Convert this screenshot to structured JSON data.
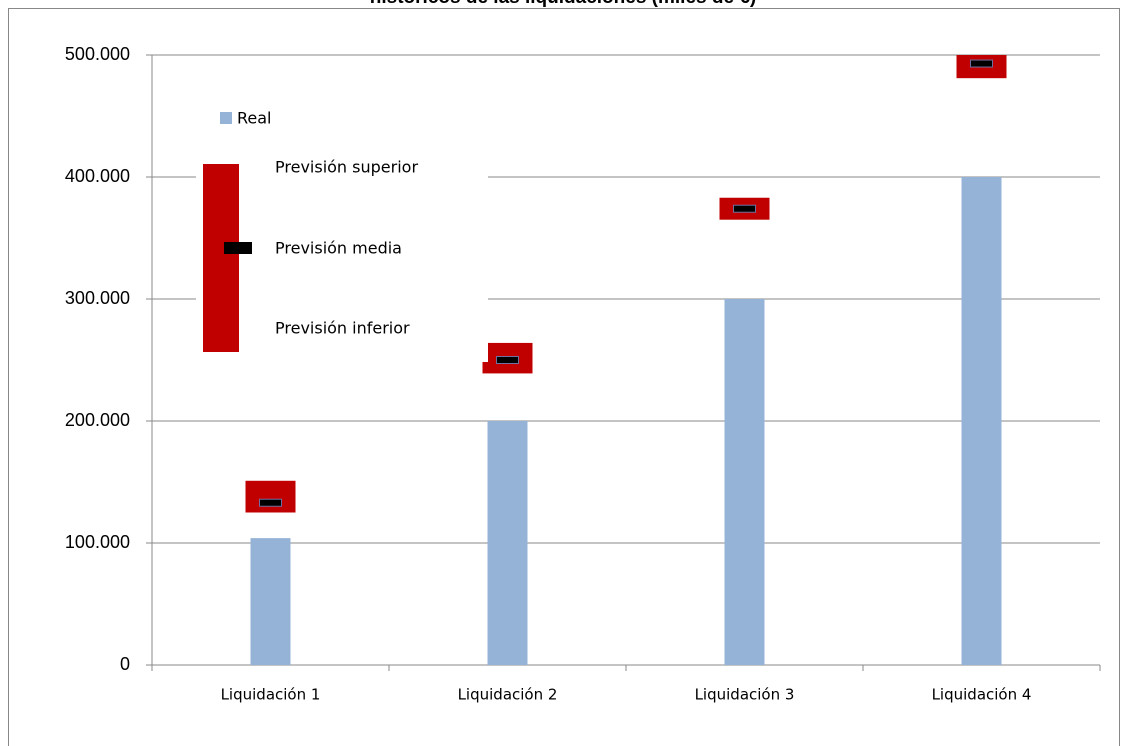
{
  "chart_data": {
    "type": "bar",
    "title": "históricos de las liquidaciones (miles de €)",
    "categories": [
      "Liquidación 1",
      "Liquidación 2",
      "Liquidación 3",
      "Liquidación 4"
    ],
    "series": [
      {
        "name": "Real",
        "color": "#95b3d7",
        "values": [
          104000,
          200000,
          300000,
          400000
        ]
      },
      {
        "name": "Previsión superior",
        "color": "#c00000",
        "values": [
          151000,
          264000,
          383000,
          500000
        ]
      },
      {
        "name": "Previsión media",
        "color": "#000000",
        "values": [
          133000,
          250000,
          374000,
          493000
        ]
      },
      {
        "name": "Previsión inferior",
        "color": "#c00000",
        "values": [
          125000,
          239000,
          365000,
          481000
        ]
      }
    ],
    "ylim": [
      0,
      500000
    ],
    "yticks": [
      0,
      {
        "value": 100000,
        "label": "100.000"
      },
      {
        "value": 200000,
        "label": "200.000"
      },
      {
        "value": 300000,
        "label": "300.000"
      },
      {
        "value": 400000,
        "label": "400.000"
      },
      {
        "value": 500000,
        "label": "500.000"
      }
    ],
    "grid": true
  }
}
